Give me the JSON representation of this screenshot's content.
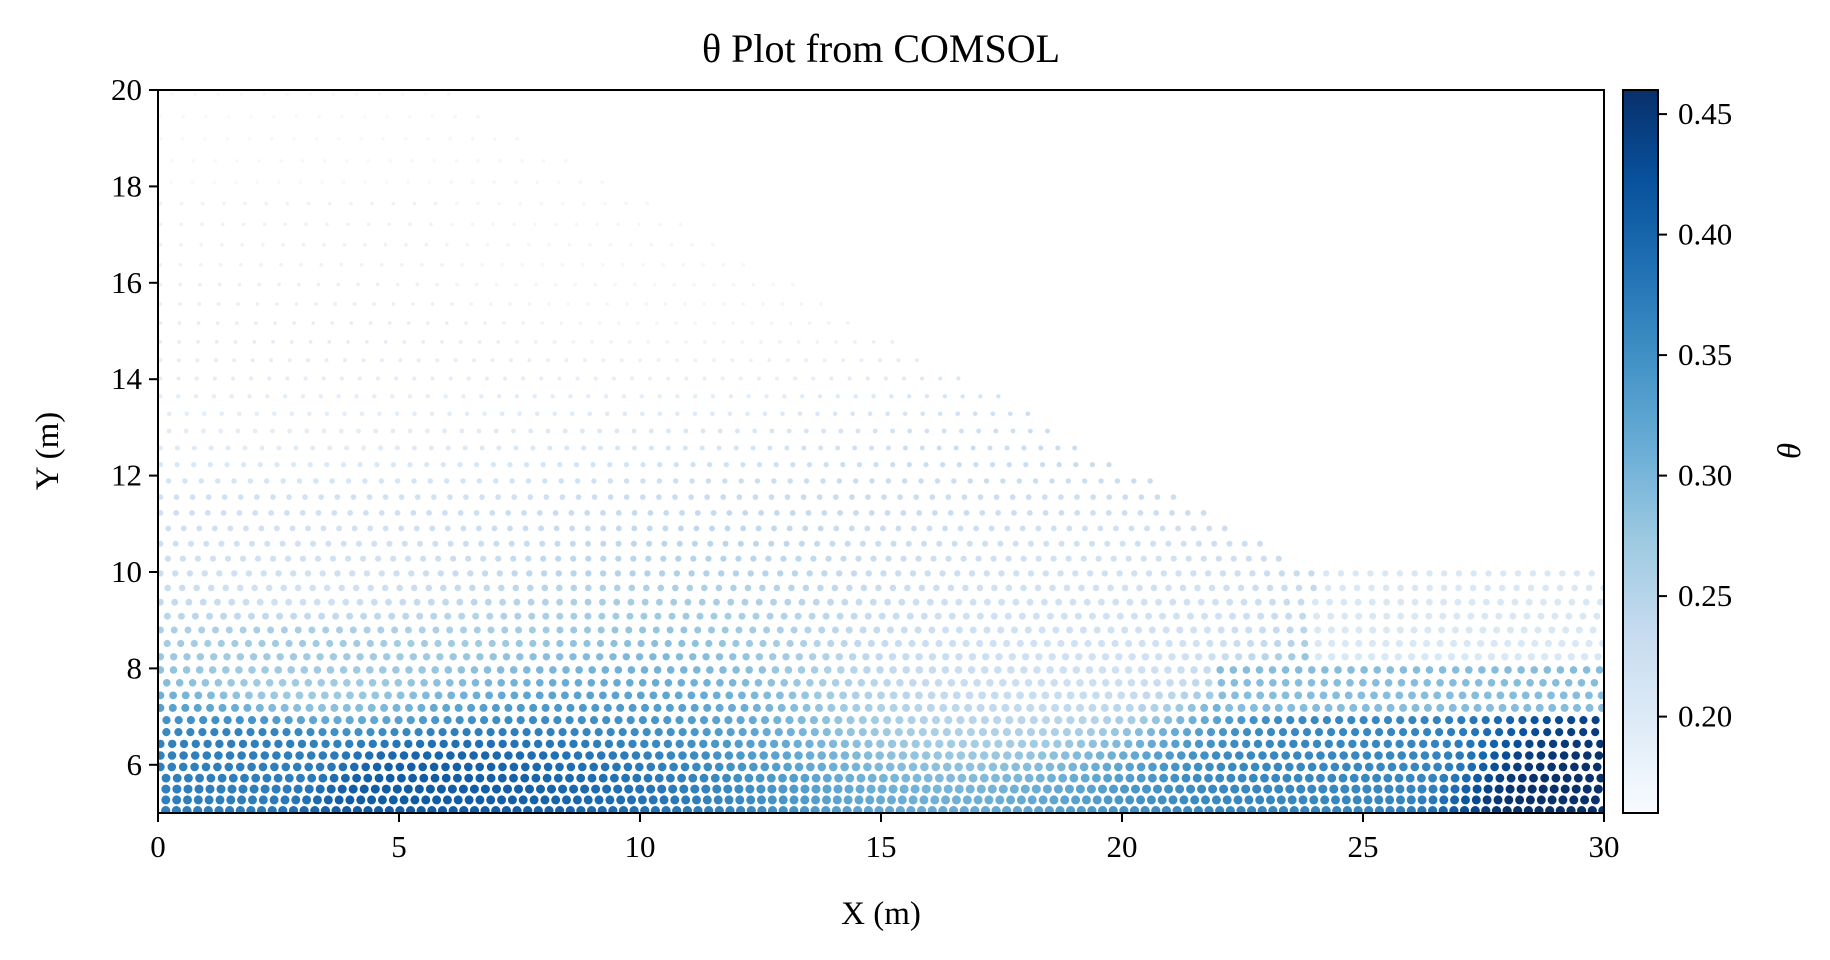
{
  "chart_data": {
    "type": "scatter",
    "title": "θ Plot from COMSOL",
    "xlabel": "X (m)",
    "ylabel": "Y (m)",
    "xlim": [
      0,
      30
    ],
    "ylim": [
      5,
      20
    ],
    "xticks": [
      "0",
      "5",
      "10",
      "15",
      "20",
      "25",
      "30"
    ],
    "yticks": [
      "6",
      "8",
      "10",
      "12",
      "14",
      "16",
      "18",
      "20"
    ],
    "grid": false,
    "colormap": "Blues",
    "colormap_stops": [
      "#f7fbff",
      "#deebf7",
      "#c6dbef",
      "#9ecae1",
      "#6baed6",
      "#4292c6",
      "#2171b5",
      "#08519c",
      "#08306b"
    ],
    "colorbar": {
      "label": "θ",
      "range": [
        0.16,
        0.46
      ],
      "ticks": [
        "0.20",
        "0.25",
        "0.30",
        "0.35",
        "0.40",
        "0.45"
      ]
    },
    "domain_top_boundary": [
      [
        0,
        20
      ],
      [
        6,
        20
      ],
      [
        24,
        10
      ],
      [
        30,
        10
      ]
    ],
    "layers": [
      {
        "x_range": [
          0,
          6
        ],
        "y_range": [
          18,
          20
        ],
        "theta": 0.165
      },
      {
        "x_range": [
          0,
          6
        ],
        "y_range": [
          16,
          18
        ],
        "theta": 0.18
      },
      {
        "x_range": [
          24,
          30
        ],
        "y_range": [
          8,
          10
        ],
        "theta": 0.205
      },
      {
        "x_range": [
          22,
          30
        ],
        "y_range": [
          7,
          8
        ],
        "theta": 0.29
      }
    ],
    "theta_field_samples": [
      {
        "x": 1,
        "y": 19,
        "theta": 0.165
      },
      {
        "x": 10,
        "y": 17,
        "theta": 0.17
      },
      {
        "x": 3,
        "y": 14,
        "theta": 0.19
      },
      {
        "x": 3,
        "y": 10,
        "theta": 0.22
      },
      {
        "x": 3,
        "y": 8,
        "theta": 0.27
      },
      {
        "x": 2,
        "y": 6,
        "theta": 0.37
      },
      {
        "x": 5,
        "y": 5.2,
        "theta": 0.41
      },
      {
        "x": 20,
        "y": 9,
        "theta": 0.22
      },
      {
        "x": 25,
        "y": 6,
        "theta": 0.36
      },
      {
        "x": 29.5,
        "y": 5.2,
        "theta": 0.46
      }
    ]
  }
}
